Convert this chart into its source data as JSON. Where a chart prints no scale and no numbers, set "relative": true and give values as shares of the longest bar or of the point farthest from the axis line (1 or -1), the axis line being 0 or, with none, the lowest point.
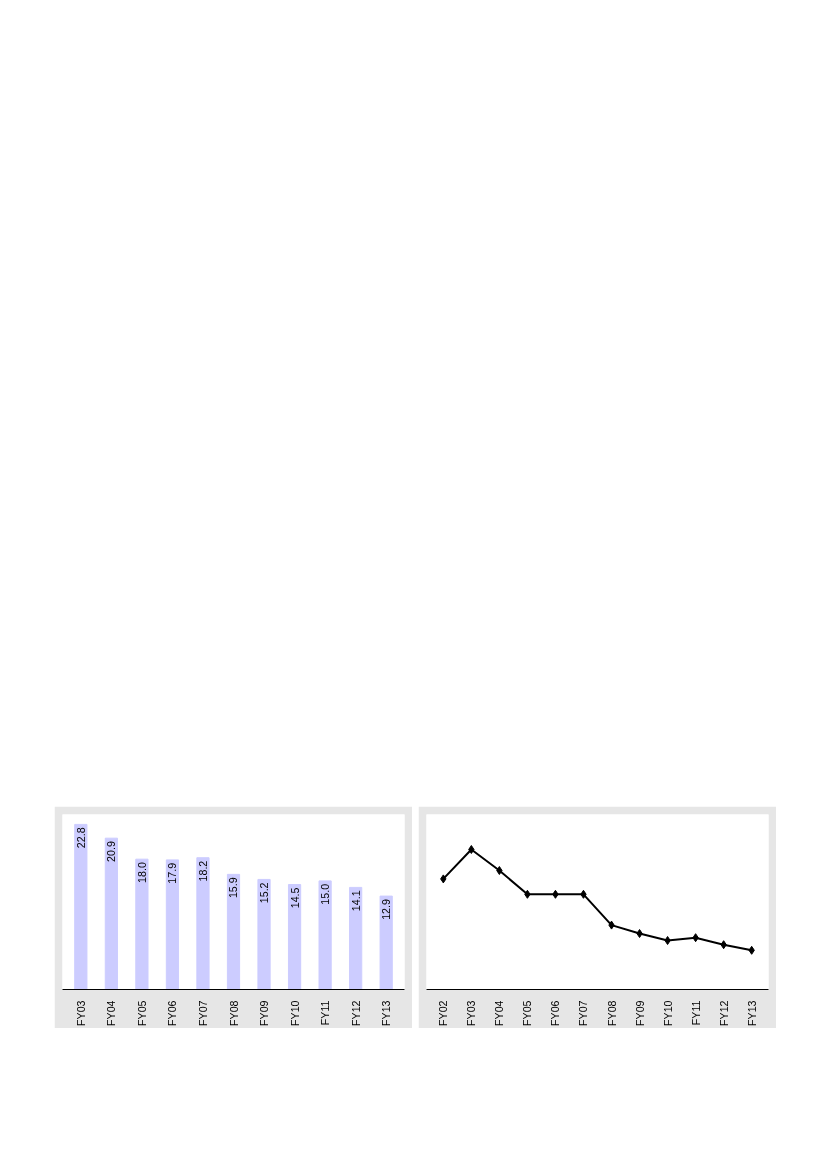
{
  "chart_data": [
    {
      "type": "bar",
      "categories": [
        "FY03",
        "FY04",
        "FY05",
        "FY06",
        "FY07",
        "FY08",
        "FY09",
        "FY10",
        "FY11",
        "FY12",
        "FY13"
      ],
      "values": [
        22.8,
        20.9,
        18.0,
        17.9,
        18.2,
        15.9,
        15.2,
        14.5,
        15.0,
        14.1,
        12.9
      ],
      "value_labels": [
        "22.8",
        "20.9",
        "18.0",
        "17.9",
        "18.2",
        "15.9",
        "15.2",
        "14.5",
        "15.0",
        "14.1",
        "12.9"
      ],
      "color": "#ccccff",
      "tick_labels": "x",
      "grid": false
    },
    {
      "type": "line",
      "relative": true,
      "categories": [
        "FY02",
        "FY03",
        "FY04",
        "FY05",
        "FY06",
        "FY07",
        "FY08",
        "FY09",
        "FY10",
        "FY11",
        "FY12",
        "FY13"
      ],
      "values": [
        0.79,
        1,
        0.85,
        0.68,
        0.68,
        0.68,
        0.46,
        0.4,
        0.35,
        0.37,
        0.32,
        0.28
      ],
      "color": "#000000",
      "marker": "diamond",
      "line_style": "solid",
      "tick_labels": "x",
      "grid": false
    }
  ]
}
